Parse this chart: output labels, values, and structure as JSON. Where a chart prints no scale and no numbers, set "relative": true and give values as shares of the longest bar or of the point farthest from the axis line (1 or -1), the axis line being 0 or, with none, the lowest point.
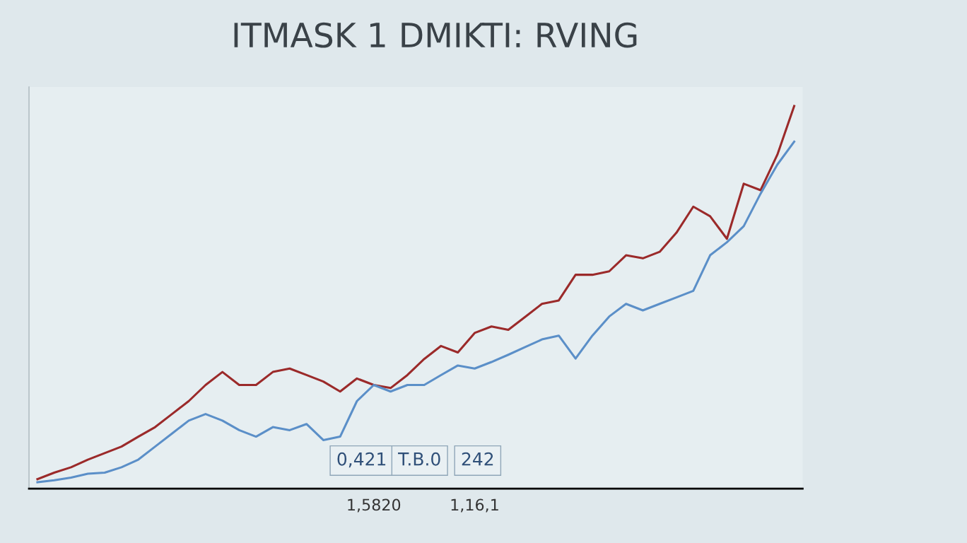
{
  "chart_data": {
    "type": "line",
    "title": "ITMASK 1 DMIKTI: RVING",
    "relative": true,
    "categories": [
      null,
      null,
      null,
      null,
      null,
      null,
      null,
      null,
      null,
      null,
      null,
      null,
      null,
      null,
      null,
      null,
      null,
      null,
      null,
      null,
      "1,5820",
      null,
      null,
      null,
      null,
      null,
      "1,16,1",
      null,
      null,
      null,
      null,
      null,
      null,
      null,
      null,
      null,
      null,
      null,
      null,
      null,
      null,
      null,
      null,
      null,
      null,
      null
    ],
    "series": [
      {
        "color": "#9b2a2a",
        "values": [
          0.025,
          0.042,
          0.056,
          0.076,
          0.093,
          0.11,
          0.136,
          0.161,
          0.195,
          0.229,
          0.271,
          0.305,
          0.271,
          0.271,
          0.305,
          0.314,
          0.297,
          0.28,
          0.254,
          0.288,
          0.271,
          0.263,
          0.297,
          0.339,
          0.373,
          0.356,
          0.407,
          0.424,
          0.415,
          0.449,
          0.483,
          0.492,
          0.559,
          0.559,
          0.568,
          0.61,
          0.602,
          0.619,
          0.669,
          0.737,
          0.712,
          0.653,
          0.797,
          0.78,
          0.873,
          1.0
        ]
      },
      {
        "color": "#5b8fc8",
        "values": [
          0.017,
          0.022,
          0.029,
          0.039,
          0.042,
          0.056,
          0.076,
          0.11,
          0.144,
          0.178,
          0.195,
          0.178,
          0.153,
          0.136,
          0.161,
          0.153,
          0.169,
          0.127,
          0.136,
          0.229,
          0.271,
          0.254,
          0.271,
          0.271,
          0.297,
          0.322,
          0.314,
          0.331,
          0.35,
          0.37,
          0.39,
          0.4,
          0.34,
          0.4,
          0.45,
          0.483,
          0.466,
          0.483,
          0.5,
          0.517,
          0.61,
          0.644,
          0.686,
          0.771,
          0.847,
          0.907
        ]
      }
    ],
    "annotations": [
      "0,421",
      "T.B.0",
      "242"
    ],
    "grid": false,
    "legend": false,
    "marker": "none",
    "line_style": "solid"
  }
}
